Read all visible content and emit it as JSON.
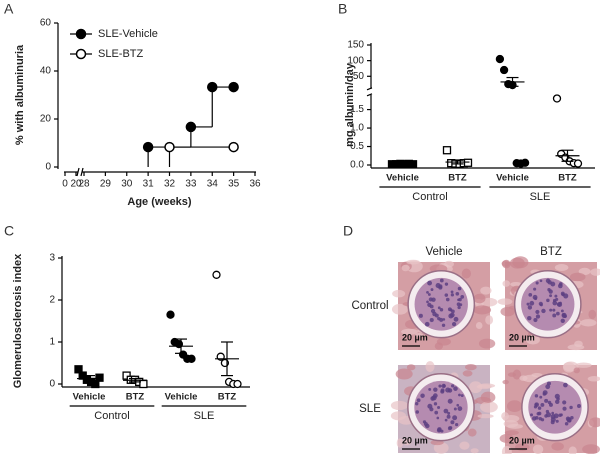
{
  "chart_data": [
    {
      "panel": "A",
      "type": "step",
      "ylabel": "% with albuminuria",
      "xlabel": "Age (weeks)",
      "xlim": [
        0,
        36
      ],
      "axis_break": [
        20,
        28
      ],
      "xticks": [
        0,
        20,
        28,
        29,
        30,
        31,
        32,
        33,
        34,
        35,
        36
      ],
      "ylim": [
        0,
        60
      ],
      "yticks": [
        0,
        20,
        40,
        60
      ],
      "legend": "upper-left",
      "series": [
        {
          "name": "SLE-Vehicle",
          "color": "#000000",
          "marker": "filled",
          "x": [
            31,
            33,
            34,
            35
          ],
          "values": [
            8.3,
            16.7,
            33.3,
            33.3
          ]
        },
        {
          "name": "SLE-BTZ",
          "color": "#000000",
          "marker": "open",
          "x": [
            32,
            35
          ],
          "values": [
            8.3,
            8.3
          ]
        }
      ]
    },
    {
      "panel": "B",
      "type": "dot",
      "ylabel": "mg albumin/day",
      "categories": [
        "Vehicle",
        "BTZ",
        "Vehicle",
        "BTZ"
      ],
      "group_labels": [
        "Control",
        "SLE"
      ],
      "ylim": [
        0,
        150
      ],
      "axis_break": [
        1.9,
        10
      ],
      "yticks": [
        {
          "value": 0,
          "label": "0.0"
        },
        {
          "value": 0.5,
          "label": "0.5"
        },
        {
          "value": 1,
          "label": "1.0"
        },
        {
          "value": 1.5,
          "label": "1.5"
        },
        50,
        100,
        150
      ],
      "markers": [
        "square",
        "square-open",
        "circle",
        "circle-open"
      ],
      "color": "#000000",
      "points": [
        [
          0.02,
          0.02,
          0.03,
          0.02,
          0.03,
          0.02
        ],
        [
          0.4,
          0.05,
          0.04,
          0.03,
          0.05,
          0.06
        ],
        [
          105,
          70,
          25,
          22,
          0.05,
          0.04,
          0.06
        ],
        [
          1.8,
          0.3,
          0.2,
          0.1,
          0.05,
          0.04
        ]
      ],
      "means": [
        0.02,
        0.08,
        32,
        0.25
      ],
      "errors": [
        0.005,
        0.05,
        14,
        0.15
      ]
    },
    {
      "panel": "C",
      "type": "dot",
      "ylabel": "Glomerulosclerosis index",
      "categories": [
        "Vehicle",
        "BTZ",
        "Vehicle",
        "BTZ"
      ],
      "group_labels": [
        "Control",
        "SLE"
      ],
      "ylim": [
        0,
        3
      ],
      "yticks": [
        0,
        1,
        2,
        3
      ],
      "markers": [
        "square",
        "square-open",
        "circle",
        "circle-open"
      ],
      "color": "#000000",
      "points": [
        [
          0.35,
          0.2,
          0.1,
          0.05,
          0,
          0.15
        ],
        [
          0.2,
          0.1,
          0.1,
          0.05,
          0
        ],
        [
          1.65,
          1.0,
          0.95,
          0.7,
          0.6,
          0.6
        ],
        [
          2.6,
          0.65,
          0.5,
          0.05,
          0,
          0
        ]
      ],
      "means": [
        0.13,
        0.09,
        0.9,
        0.6
      ],
      "errors": [
        0.07,
        0.04,
        0.17,
        0.4
      ]
    }
  ],
  "micrographs": {
    "panel": "D",
    "columns": [
      "Vehicle",
      "BTZ"
    ],
    "rows": [
      "Control",
      "SLE"
    ],
    "scale_bar": "20 µm"
  }
}
